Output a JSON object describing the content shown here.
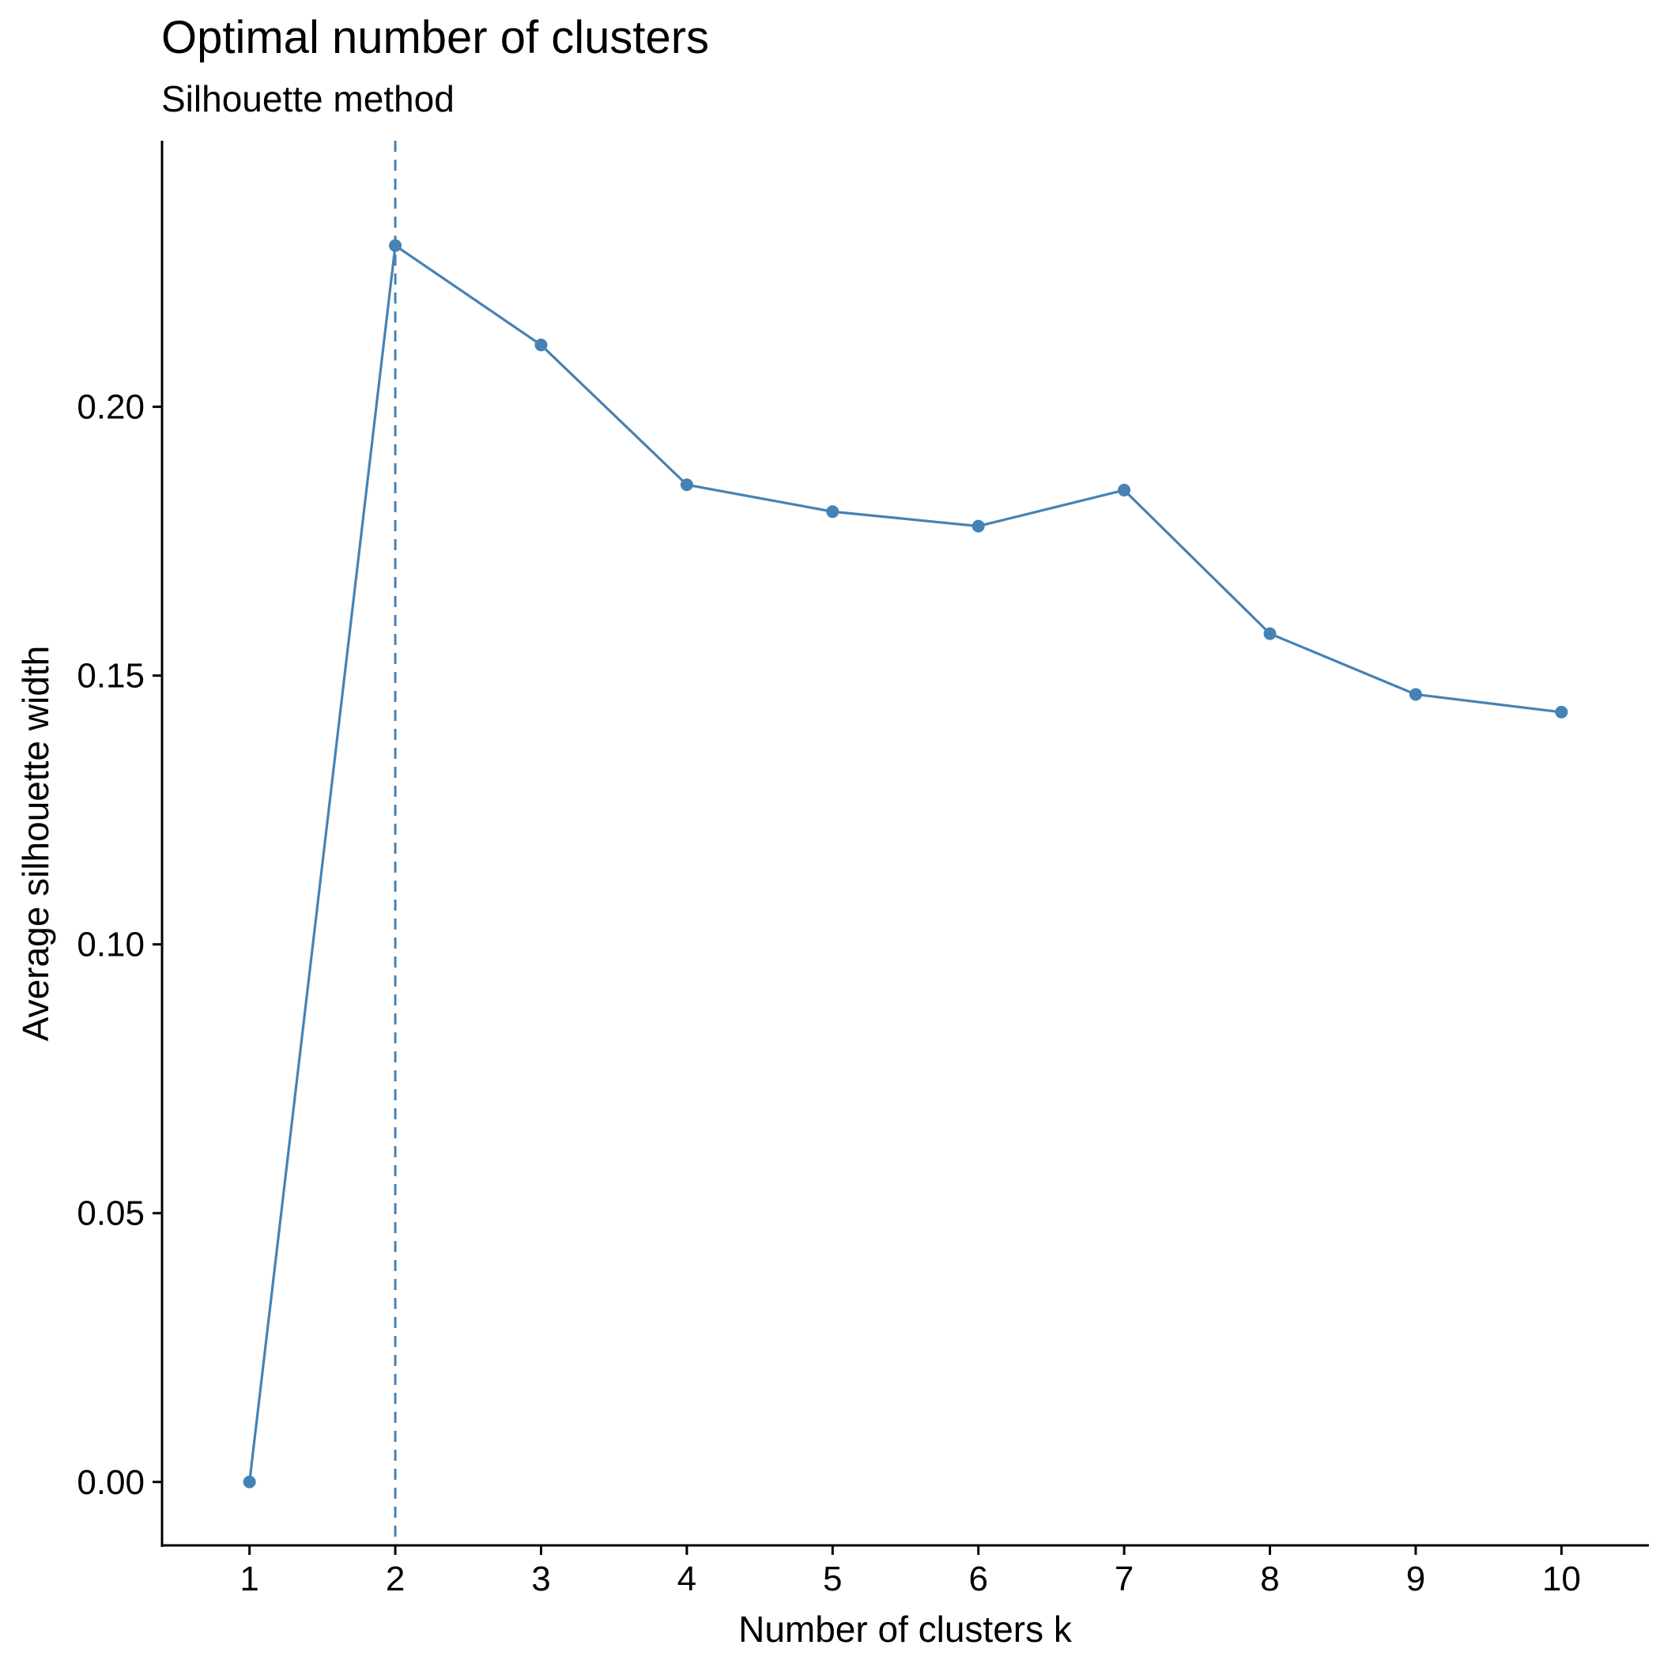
{
  "chart_data": {
    "type": "line",
    "title": "Optimal number of clusters",
    "subtitle": "Silhouette method",
    "xlabel": "Number of clusters k",
    "ylabel": "Average silhouette width",
    "categories": [
      "1",
      "2",
      "3",
      "4",
      "5",
      "6",
      "7",
      "8",
      "9",
      "10"
    ],
    "series": [
      {
        "name": "Average silhouette width",
        "values": [
          0.0,
          0.23,
          0.2115,
          0.1855,
          0.1805,
          0.1778,
          0.1845,
          0.1578,
          0.1465,
          0.1432
        ]
      }
    ],
    "yticks": [
      "0.00",
      "0.05",
      "0.10",
      "0.15",
      "0.20"
    ],
    "ytick_values": [
      0.0,
      0.05,
      0.1,
      0.15,
      0.2
    ],
    "ylim": [
      -0.0118,
      0.2495
    ],
    "xlim": [
      0.4,
      10.6
    ],
    "optimal_k": 2,
    "grid": false,
    "legend": "none",
    "colors": {
      "line": "#4682B4",
      "point": "#4682B4",
      "reference_line": "#4682B4",
      "axis": "#000000"
    }
  }
}
